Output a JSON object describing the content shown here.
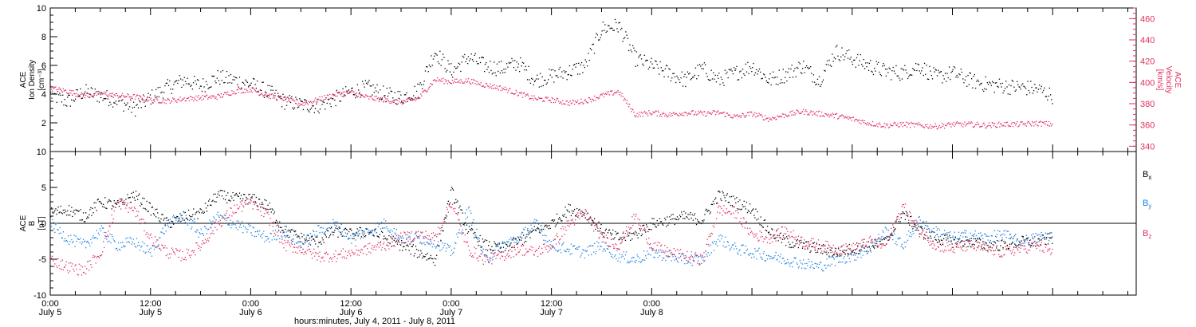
{
  "chart_data": [
    {
      "type": "scatter",
      "panel": "top",
      "ylabel_lines": [
        "ACE",
        "Ion Density",
        "[cm⁻³]"
      ],
      "ylim": [
        0,
        10
      ],
      "yticks": [
        "2",
        "4",
        "6",
        "8",
        "10"
      ],
      "y2label_lines": [
        "ACE",
        "Velocity",
        "[km/s]"
      ],
      "y2lim": [
        335,
        470
      ],
      "y2ticks": [
        "340",
        "360",
        "380",
        "400",
        "420",
        "440",
        "460"
      ],
      "colors": {
        "density": "#000000",
        "velocity": "#e0305f"
      },
      "series": [
        {
          "name": "Ion Density",
          "axis": "left",
          "x": [
            0,
            2,
            4,
            6,
            8,
            10,
            12,
            14,
            16,
            18,
            20,
            22,
            24,
            26,
            28,
            30,
            32,
            34,
            36,
            38,
            40,
            42,
            44,
            46,
            48,
            50,
            52,
            54,
            56,
            58,
            60,
            62,
            64,
            66,
            68,
            70,
            72,
            74,
            76,
            78,
            80,
            82,
            84,
            86,
            88,
            90,
            92,
            94,
            96,
            98,
            100,
            102,
            104,
            106,
            108,
            110,
            112,
            114,
            116,
            118,
            120
          ],
          "values": [
            4.0,
            3.5,
            4.2,
            3.9,
            3.6,
            3.0,
            3.8,
            4.5,
            5.0,
            4.6,
            5.2,
            5.0,
            4.7,
            4.2,
            3.5,
            3.3,
            3.2,
            3.7,
            4.2,
            4.5,
            4.0,
            3.8,
            4.3,
            7.0,
            5.6,
            6.6,
            6.0,
            5.8,
            6.2,
            5.0,
            5.3,
            5.6,
            6.0,
            8.6,
            8.8,
            6.5,
            6.0,
            5.5,
            5.0,
            5.8,
            5.0,
            5.5,
            6.0,
            5.0,
            5.4,
            6.0,
            5.0,
            7.0,
            6.5,
            6.0,
            5.6,
            5.5,
            6.0,
            5.2,
            5.5,
            5.0,
            4.7,
            4.6,
            4.5,
            4.4,
            3.9
          ]
        },
        {
          "name": "Velocity",
          "axis": "right",
          "x": [
            0,
            2,
            4,
            6,
            8,
            10,
            12,
            14,
            16,
            18,
            20,
            22,
            24,
            26,
            28,
            30,
            32,
            34,
            36,
            38,
            40,
            42,
            44,
            46,
            48,
            50,
            52,
            54,
            56,
            58,
            60,
            62,
            64,
            66,
            68,
            70,
            72,
            74,
            76,
            78,
            80,
            82,
            84,
            86,
            88,
            90,
            92,
            94,
            96,
            98,
            100,
            102,
            104,
            106,
            108,
            110,
            112,
            114,
            116,
            118,
            120
          ],
          "values": [
            395,
            392,
            388,
            390,
            388,
            387,
            384,
            383,
            385,
            386,
            387,
            392,
            394,
            388,
            385,
            380,
            384,
            389,
            391,
            386,
            384,
            382,
            385,
            403,
            401,
            402,
            398,
            395,
            390,
            385,
            384,
            381,
            383,
            388,
            392,
            370,
            372,
            370,
            372,
            371,
            372,
            368,
            371,
            366,
            370,
            373,
            371,
            369,
            366,
            362,
            360,
            361,
            360,
            359,
            361,
            361,
            360,
            361,
            361,
            362,
            361
          ]
        }
      ]
    },
    {
      "type": "scatter",
      "panel": "bottom",
      "ylabel_lines": [
        "ACE",
        "B",
        "[nT]"
      ],
      "ylim": [
        -10,
        10
      ],
      "yticks": [
        "-10",
        "-5",
        "0",
        "5",
        "10"
      ],
      "series": [
        {
          "name": "Bx",
          "color": "#000000",
          "x": [
            0,
            2,
            4,
            6,
            8,
            10,
            12,
            14,
            16,
            18,
            20,
            22,
            24,
            26,
            28,
            30,
            32,
            34,
            36,
            38,
            40,
            42,
            44,
            46,
            48,
            50,
            52,
            54,
            56,
            58,
            60,
            62,
            64,
            66,
            68,
            70,
            72,
            74,
            76,
            78,
            80,
            82,
            84,
            86,
            88,
            90,
            92,
            94,
            96,
            98,
            100,
            102,
            104,
            106,
            108,
            110,
            112,
            114,
            116,
            118,
            120
          ],
          "values": [
            1.5,
            2.0,
            1.0,
            3.0,
            2.5,
            4.0,
            2.0,
            0.0,
            1.0,
            1.5,
            4.0,
            3.5,
            3.5,
            2.5,
            -1.0,
            -2.0,
            -2.5,
            -1.0,
            -1.5,
            -1.0,
            -2.0,
            -3.0,
            -4.0,
            -5.0,
            4.5,
            -1.0,
            -3.0,
            -3.5,
            -2.5,
            -1.0,
            0.0,
            2.0,
            1.5,
            -1.0,
            -2.0,
            -1.5,
            0.0,
            0.5,
            1.0,
            0.5,
            4.0,
            3.0,
            2.0,
            -1.0,
            -2.5,
            -3.0,
            -3.5,
            -4.0,
            -3.5,
            -3.0,
            -2.5,
            1.5,
            -1.0,
            -2.0,
            -2.5,
            -2.5,
            -3.0,
            -3.0,
            -2.5,
            -2.5,
            -2.0
          ]
        },
        {
          "name": "By",
          "color": "#2080e0",
          "x": [
            0,
            2,
            4,
            6,
            8,
            10,
            12,
            14,
            16,
            18,
            20,
            22,
            24,
            26,
            28,
            30,
            32,
            34,
            36,
            38,
            40,
            42,
            44,
            46,
            48,
            50,
            52,
            54,
            56,
            58,
            60,
            62,
            64,
            66,
            68,
            70,
            72,
            74,
            76,
            78,
            80,
            82,
            84,
            86,
            88,
            90,
            92,
            94,
            96,
            98,
            100,
            102,
            104,
            106,
            108,
            110,
            112,
            114,
            116,
            118,
            120
          ],
          "values": [
            0.0,
            -2.0,
            -3.0,
            -1.0,
            -3.0,
            -2.5,
            -4.0,
            0.0,
            1.0,
            -1.5,
            1.0,
            0.0,
            -1.0,
            -2.0,
            -1.0,
            -3.0,
            -1.0,
            0.0,
            -2.0,
            -1.0,
            0.0,
            -2.0,
            -2.0,
            -2.5,
            -4.0,
            2.0,
            -5.0,
            -3.0,
            -2.0,
            0.0,
            -3.0,
            -3.5,
            -4.0,
            -3.0,
            -4.5,
            -5.0,
            -4.0,
            -4.5,
            -5.0,
            -5.0,
            -2.0,
            -3.5,
            -4.0,
            -4.5,
            -5.0,
            -5.5,
            -6.0,
            -5.0,
            -4.5,
            -3.5,
            -1.0,
            -3.0,
            0.5,
            -1.0,
            -2.0,
            -1.5,
            -2.0,
            -1.5,
            -2.5,
            -2.0,
            -1.5
          ]
        },
        {
          "name": "Bz",
          "color": "#e0305f",
          "x": [
            0,
            2,
            4,
            6,
            8,
            10,
            12,
            14,
            16,
            18,
            20,
            22,
            24,
            26,
            28,
            30,
            32,
            34,
            36,
            38,
            40,
            42,
            44,
            46,
            48,
            50,
            52,
            54,
            56,
            58,
            60,
            62,
            64,
            66,
            68,
            70,
            72,
            74,
            76,
            78,
            80,
            82,
            84,
            86,
            88,
            90,
            92,
            94,
            96,
            98,
            100,
            102,
            104,
            106,
            108,
            110,
            112,
            114,
            116,
            118,
            120
          ],
          "values": [
            -5.0,
            -6.0,
            -6.5,
            -4.0,
            3.0,
            2.0,
            -2.0,
            -4.0,
            -4.5,
            -3.0,
            0.0,
            2.0,
            3.0,
            1.0,
            -3.0,
            -3.5,
            -4.5,
            -4.5,
            -4.0,
            -3.5,
            -3.0,
            -2.0,
            -1.5,
            -2.0,
            3.0,
            -3.5,
            -5.0,
            -4.5,
            -3.5,
            -4.0,
            -3.0,
            0.0,
            1.5,
            -2.0,
            -3.0,
            1.0,
            -3.0,
            -4.0,
            -4.5,
            -5.0,
            2.0,
            1.5,
            -1.5,
            -2.0,
            -1.0,
            -2.5,
            -3.0,
            -3.5,
            -3.5,
            -2.5,
            -3.0,
            2.5,
            -1.0,
            -3.0,
            -3.5,
            -3.0,
            -3.5,
            -4.0,
            -3.5,
            -3.0,
            -4.0
          ]
        }
      ],
      "legend": [
        {
          "label": "B",
          "sub": "x",
          "color": "#000000"
        },
        {
          "label": "B",
          "sub": "y",
          "color": "#2080e0"
        },
        {
          "label": "B",
          "sub": "z",
          "color": "#e0305f"
        }
      ]
    }
  ],
  "x_axis": {
    "xlim_hours": [
      0,
      130
    ],
    "tick_labels": [
      {
        "hours": 0,
        "time": "0:00",
        "day": "July 5"
      },
      {
        "hours": 12,
        "time": "12:00",
        "day": "July 5"
      },
      {
        "hours": 24,
        "time": "0:00",
        "day": "July 6"
      },
      {
        "hours": 36,
        "time": "12:00",
        "day": "July 6"
      },
      {
        "hours": 48,
        "time": "0:00",
        "day": "July 7"
      },
      {
        "hours": 60,
        "time": "12:00",
        "day": "July 7"
      },
      {
        "hours": 72,
        "time": "0:00",
        "day": "July 8"
      }
    ],
    "xlabel": "hours:minutes,  July  4, 2011 - July  8, 2011"
  }
}
